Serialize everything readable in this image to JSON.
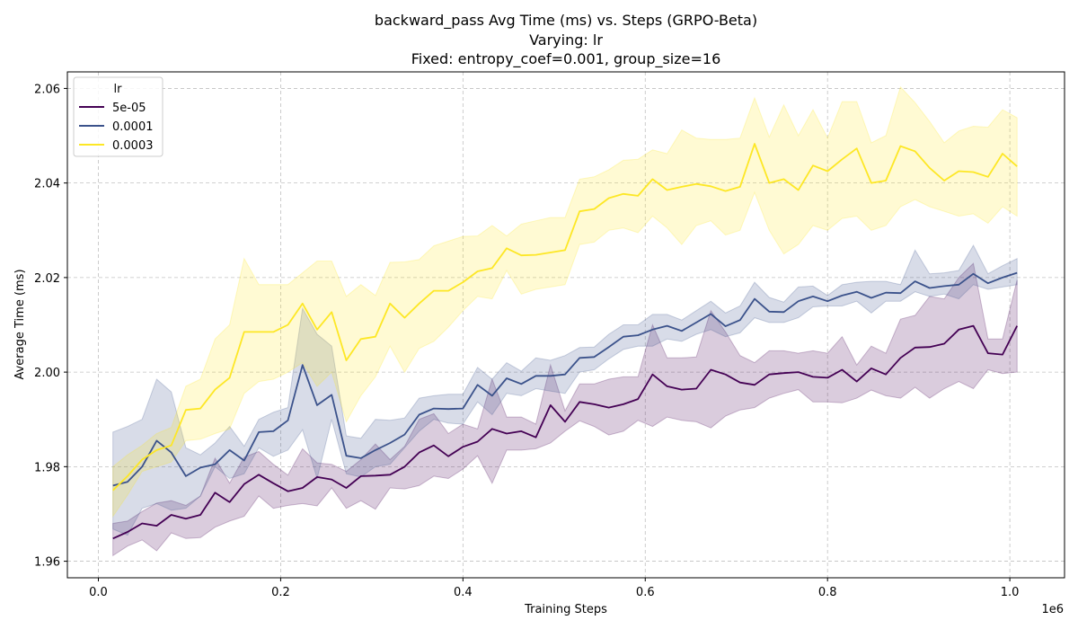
{
  "chart_data": {
    "type": "line",
    "title_lines": [
      "backward_pass Avg Time (ms) vs. Steps (GRPO-Beta)",
      "Varying: lr",
      "Fixed: entropy_coef=0.001, group_size=16"
    ],
    "xlabel": "Training Steps",
    "ylabel": "Average Time (ms)",
    "x_offset_label": "1e6",
    "xlim": [
      -0.034,
      1.06
    ],
    "ylim": [
      1.9565,
      2.0635
    ],
    "x_ticks": [
      0.0,
      0.2,
      0.4,
      0.6,
      0.8,
      1.0
    ],
    "x_tick_labels": [
      "0.0",
      "0.2",
      "0.4",
      "0.6",
      "0.8",
      "1.0"
    ],
    "y_ticks": [
      1.96,
      1.98,
      2.0,
      2.02,
      2.04,
      2.06
    ],
    "y_tick_labels": [
      "1.96",
      "1.98",
      "2.00",
      "2.02",
      "2.04",
      "2.06"
    ],
    "grid": true,
    "legend_title": "lr",
    "legend_position": "top-left",
    "x": [
      0.016,
      0.032,
      0.048,
      0.064,
      0.08,
      0.096,
      0.112,
      0.128,
      0.144,
      0.16,
      0.176,
      0.192,
      0.208,
      0.224,
      0.24,
      0.256,
      0.272,
      0.288,
      0.304,
      0.32,
      0.336,
      0.352,
      0.368,
      0.384,
      0.4,
      0.416,
      0.432,
      0.448,
      0.464,
      0.48,
      0.496,
      0.512,
      0.528,
      0.544,
      0.56,
      0.576,
      0.592,
      0.608,
      0.624,
      0.64,
      0.656,
      0.672,
      0.688,
      0.704,
      0.72,
      0.736,
      0.752,
      0.768,
      0.784,
      0.8,
      0.816,
      0.832,
      0.848,
      0.864,
      0.88,
      0.896,
      0.912,
      0.928,
      0.944,
      0.96,
      0.976,
      0.992,
      1.008
    ],
    "series": [
      {
        "name": "5e-05",
        "color": "#440154",
        "values": [
          1.9648,
          1.9662,
          1.968,
          1.9675,
          1.9698,
          1.969,
          1.9698,
          1.9745,
          1.9725,
          1.9763,
          1.9783,
          1.9765,
          1.9748,
          1.9755,
          1.9778,
          1.9773,
          1.9755,
          1.978,
          1.9781,
          1.9783,
          1.98,
          1.983,
          1.9845,
          1.9822,
          1.9842,
          1.9853,
          1.988,
          1.987,
          1.9875,
          1.9862,
          1.993,
          1.9895,
          1.9937,
          1.9932,
          1.9925,
          1.9932,
          1.9943,
          1.9995,
          1.997,
          1.9963,
          1.9965,
          2.0005,
          1.9995,
          1.9978,
          1.9973,
          1.9995,
          1.9998,
          2.0,
          1.999,
          1.9988,
          2.0005,
          1.998,
          2.0008,
          1.9995,
          2.003,
          2.0052,
          2.0053,
          2.006,
          2.009,
          2.0098,
          2.004,
          2.0037,
          2.0098
        ],
        "lower": [
          1.9612,
          1.9632,
          1.9645,
          1.9622,
          1.966,
          1.9648,
          1.965,
          1.9672,
          1.9685,
          1.9695,
          1.9738,
          1.9712,
          1.9718,
          1.9722,
          1.9717,
          1.9755,
          1.9712,
          1.9728,
          1.971,
          1.9755,
          1.9753,
          1.976,
          1.978,
          1.9775,
          1.9795,
          1.9823,
          1.9765,
          1.9835,
          1.9835,
          1.9838,
          1.985,
          1.9875,
          1.9897,
          1.9885,
          1.9867,
          1.9875,
          1.9898,
          1.9885,
          1.9905,
          1.9898,
          1.9895,
          1.9882,
          1.9907,
          1.992,
          1.9925,
          1.9945,
          1.9955,
          1.9963,
          1.9937,
          1.9937,
          1.9935,
          1.9945,
          1.9962,
          1.995,
          1.9945,
          1.9968,
          1.9945,
          1.9965,
          1.998,
          1.9965,
          2.0005,
          1.9997,
          2.0
        ],
        "upper": [
          1.968,
          1.9685,
          1.9705,
          1.9723,
          1.9728,
          1.9718,
          1.9738,
          1.9818,
          1.9765,
          1.982,
          1.9832,
          1.9805,
          1.9782,
          1.9838,
          1.9808,
          1.9805,
          1.979,
          1.9815,
          1.9848,
          1.9815,
          1.9843,
          1.99,
          1.9912,
          1.987,
          1.989,
          1.988,
          1.9985,
          1.9905,
          1.9905,
          1.989,
          2.0015,
          1.9918,
          1.9975,
          1.9975,
          1.9985,
          1.999,
          1.999,
          2.01,
          2.003,
          2.003,
          2.0032,
          2.013,
          2.0085,
          2.0035,
          2.002,
          2.0045,
          2.0045,
          2.004,
          2.0045,
          2.004,
          2.0075,
          2.0015,
          2.0055,
          2.004,
          2.0112,
          2.012,
          2.016,
          2.0155,
          2.02,
          2.023,
          2.007,
          2.007,
          2.0195
        ]
      },
      {
        "name": "0.0001",
        "color": "#3b528b",
        "values": [
          1.976,
          1.9768,
          1.98,
          1.9855,
          1.983,
          1.978,
          1.9798,
          1.9805,
          1.9835,
          1.9813,
          1.9873,
          1.9875,
          1.9898,
          2.0015,
          1.993,
          1.9952,
          1.9823,
          1.9818,
          1.9835,
          1.985,
          1.9868,
          1.991,
          1.9923,
          1.9922,
          1.9923,
          1.9973,
          1.995,
          1.9987,
          1.9975,
          1.9992,
          1.9992,
          1.9995,
          2.003,
          2.0032,
          2.0053,
          2.0075,
          2.0078,
          2.009,
          2.0098,
          2.0087,
          2.0105,
          2.0123,
          2.0097,
          2.011,
          2.0155,
          2.0128,
          2.0127,
          2.015,
          2.016,
          2.015,
          2.0162,
          2.017,
          2.0157,
          2.0168,
          2.0167,
          2.0192,
          2.0178,
          2.0182,
          2.0185,
          2.0208,
          2.0188,
          2.02,
          2.021
        ],
        "lower": [
          1.9668,
          1.9655,
          1.9712,
          1.9722,
          1.9708,
          1.9712,
          1.9738,
          1.98,
          1.9775,
          1.9785,
          1.984,
          1.9822,
          1.9835,
          1.9878,
          1.9775,
          1.99,
          1.9785,
          1.9778,
          1.98,
          1.9805,
          1.984,
          1.9875,
          1.99,
          1.9892,
          1.989,
          1.9937,
          1.991,
          1.9955,
          1.995,
          1.9965,
          1.996,
          1.9955,
          2.0,
          2.0005,
          2.0028,
          2.0048,
          2.0055,
          2.0055,
          2.007,
          2.0065,
          2.008,
          2.009,
          2.0075,
          2.0083,
          2.0115,
          2.0105,
          2.0105,
          2.0115,
          2.0138,
          2.014,
          2.014,
          2.015,
          2.0125,
          2.015,
          2.015,
          2.017,
          2.016,
          2.0165,
          2.0155,
          2.0185,
          2.0175,
          2.018,
          2.0185
        ],
        "upper": [
          1.9873,
          1.9885,
          1.99,
          1.9985,
          1.9958,
          1.984,
          1.9825,
          1.985,
          1.9885,
          1.9843,
          1.99,
          1.9915,
          1.9925,
          2.0135,
          2.008,
          2.0055,
          1.9865,
          1.986,
          1.99,
          1.9898,
          1.9903,
          1.9945,
          1.995,
          1.9953,
          1.9953,
          2.001,
          1.9985,
          2.002,
          2.0002,
          2.003,
          2.0025,
          2.0035,
          2.0052,
          2.0053,
          2.008,
          2.01,
          2.01,
          2.0122,
          2.0122,
          2.011,
          2.013,
          2.015,
          2.0125,
          2.014,
          2.019,
          2.0158,
          2.0148,
          2.018,
          2.0182,
          2.0162,
          2.0185,
          2.019,
          2.0192,
          2.0192,
          2.0185,
          2.0258,
          2.0208,
          2.021,
          2.0215,
          2.0268,
          2.0208,
          2.0225,
          2.024
        ]
      },
      {
        "name": "0.0003",
        "color": "#fde725",
        "values": [
          1.975,
          1.978,
          1.9815,
          1.9835,
          1.9845,
          1.992,
          1.9923,
          1.9963,
          1.9988,
          2.0085,
          2.0085,
          2.0085,
          2.01,
          2.0145,
          2.009,
          2.0127,
          2.0025,
          2.007,
          2.0075,
          2.0145,
          2.0115,
          2.0145,
          2.0172,
          2.0172,
          2.019,
          2.0213,
          2.022,
          2.0262,
          2.0247,
          2.0248,
          2.0253,
          2.0258,
          2.034,
          2.0345,
          2.0368,
          2.0377,
          2.0373,
          2.0408,
          2.0385,
          2.0392,
          2.0398,
          2.0393,
          2.0383,
          2.0392,
          2.0483,
          2.04,
          2.0408,
          2.0385,
          2.0437,
          2.0425,
          2.045,
          2.0473,
          2.04,
          2.0405,
          2.0478,
          2.0467,
          2.0432,
          2.0405,
          2.0425,
          2.0423,
          2.0413,
          2.0462,
          2.0435
        ],
        "lower": [
          1.9695,
          1.974,
          1.979,
          1.98,
          1.981,
          1.9855,
          1.9858,
          1.987,
          1.988,
          1.9955,
          1.998,
          1.9985,
          2.0,
          2.002,
          1.997,
          2.0,
          1.9895,
          1.995,
          1.999,
          2.0055,
          2.0,
          2.005,
          2.0065,
          2.0095,
          2.013,
          2.016,
          2.0155,
          2.0215,
          2.0165,
          2.0175,
          2.018,
          2.0185,
          2.027,
          2.0275,
          2.03,
          2.0305,
          2.0295,
          2.033,
          2.0305,
          2.027,
          2.031,
          2.032,
          2.029,
          2.03,
          2.038,
          2.03,
          2.025,
          2.027,
          2.031,
          2.03,
          2.0325,
          2.033,
          2.03,
          2.031,
          2.035,
          2.0365,
          2.035,
          2.034,
          2.033,
          2.0335,
          2.0315,
          2.035,
          2.033
        ],
        "upper": [
          1.98,
          1.9825,
          1.9845,
          1.987,
          1.9883,
          1.997,
          1.9985,
          2.007,
          2.01,
          2.024,
          2.0185,
          2.0185,
          2.0185,
          2.021,
          2.0235,
          2.0235,
          2.016,
          2.0185,
          2.0162,
          2.0232,
          2.0233,
          2.0238,
          2.0267,
          2.0277,
          2.0287,
          2.0288,
          2.031,
          2.0288,
          2.0313,
          2.032,
          2.0327,
          2.0327,
          2.0408,
          2.0413,
          2.0428,
          2.0448,
          2.045,
          2.047,
          2.0462,
          2.0512,
          2.0495,
          2.0492,
          2.0492,
          2.0495,
          2.058,
          2.0497,
          2.0565,
          2.05,
          2.0555,
          2.0495,
          2.0572,
          2.0572,
          2.0485,
          2.05,
          2.0603,
          2.057,
          2.053,
          2.0485,
          2.051,
          2.052,
          2.0518,
          2.0555,
          2.0538
        ]
      }
    ]
  }
}
